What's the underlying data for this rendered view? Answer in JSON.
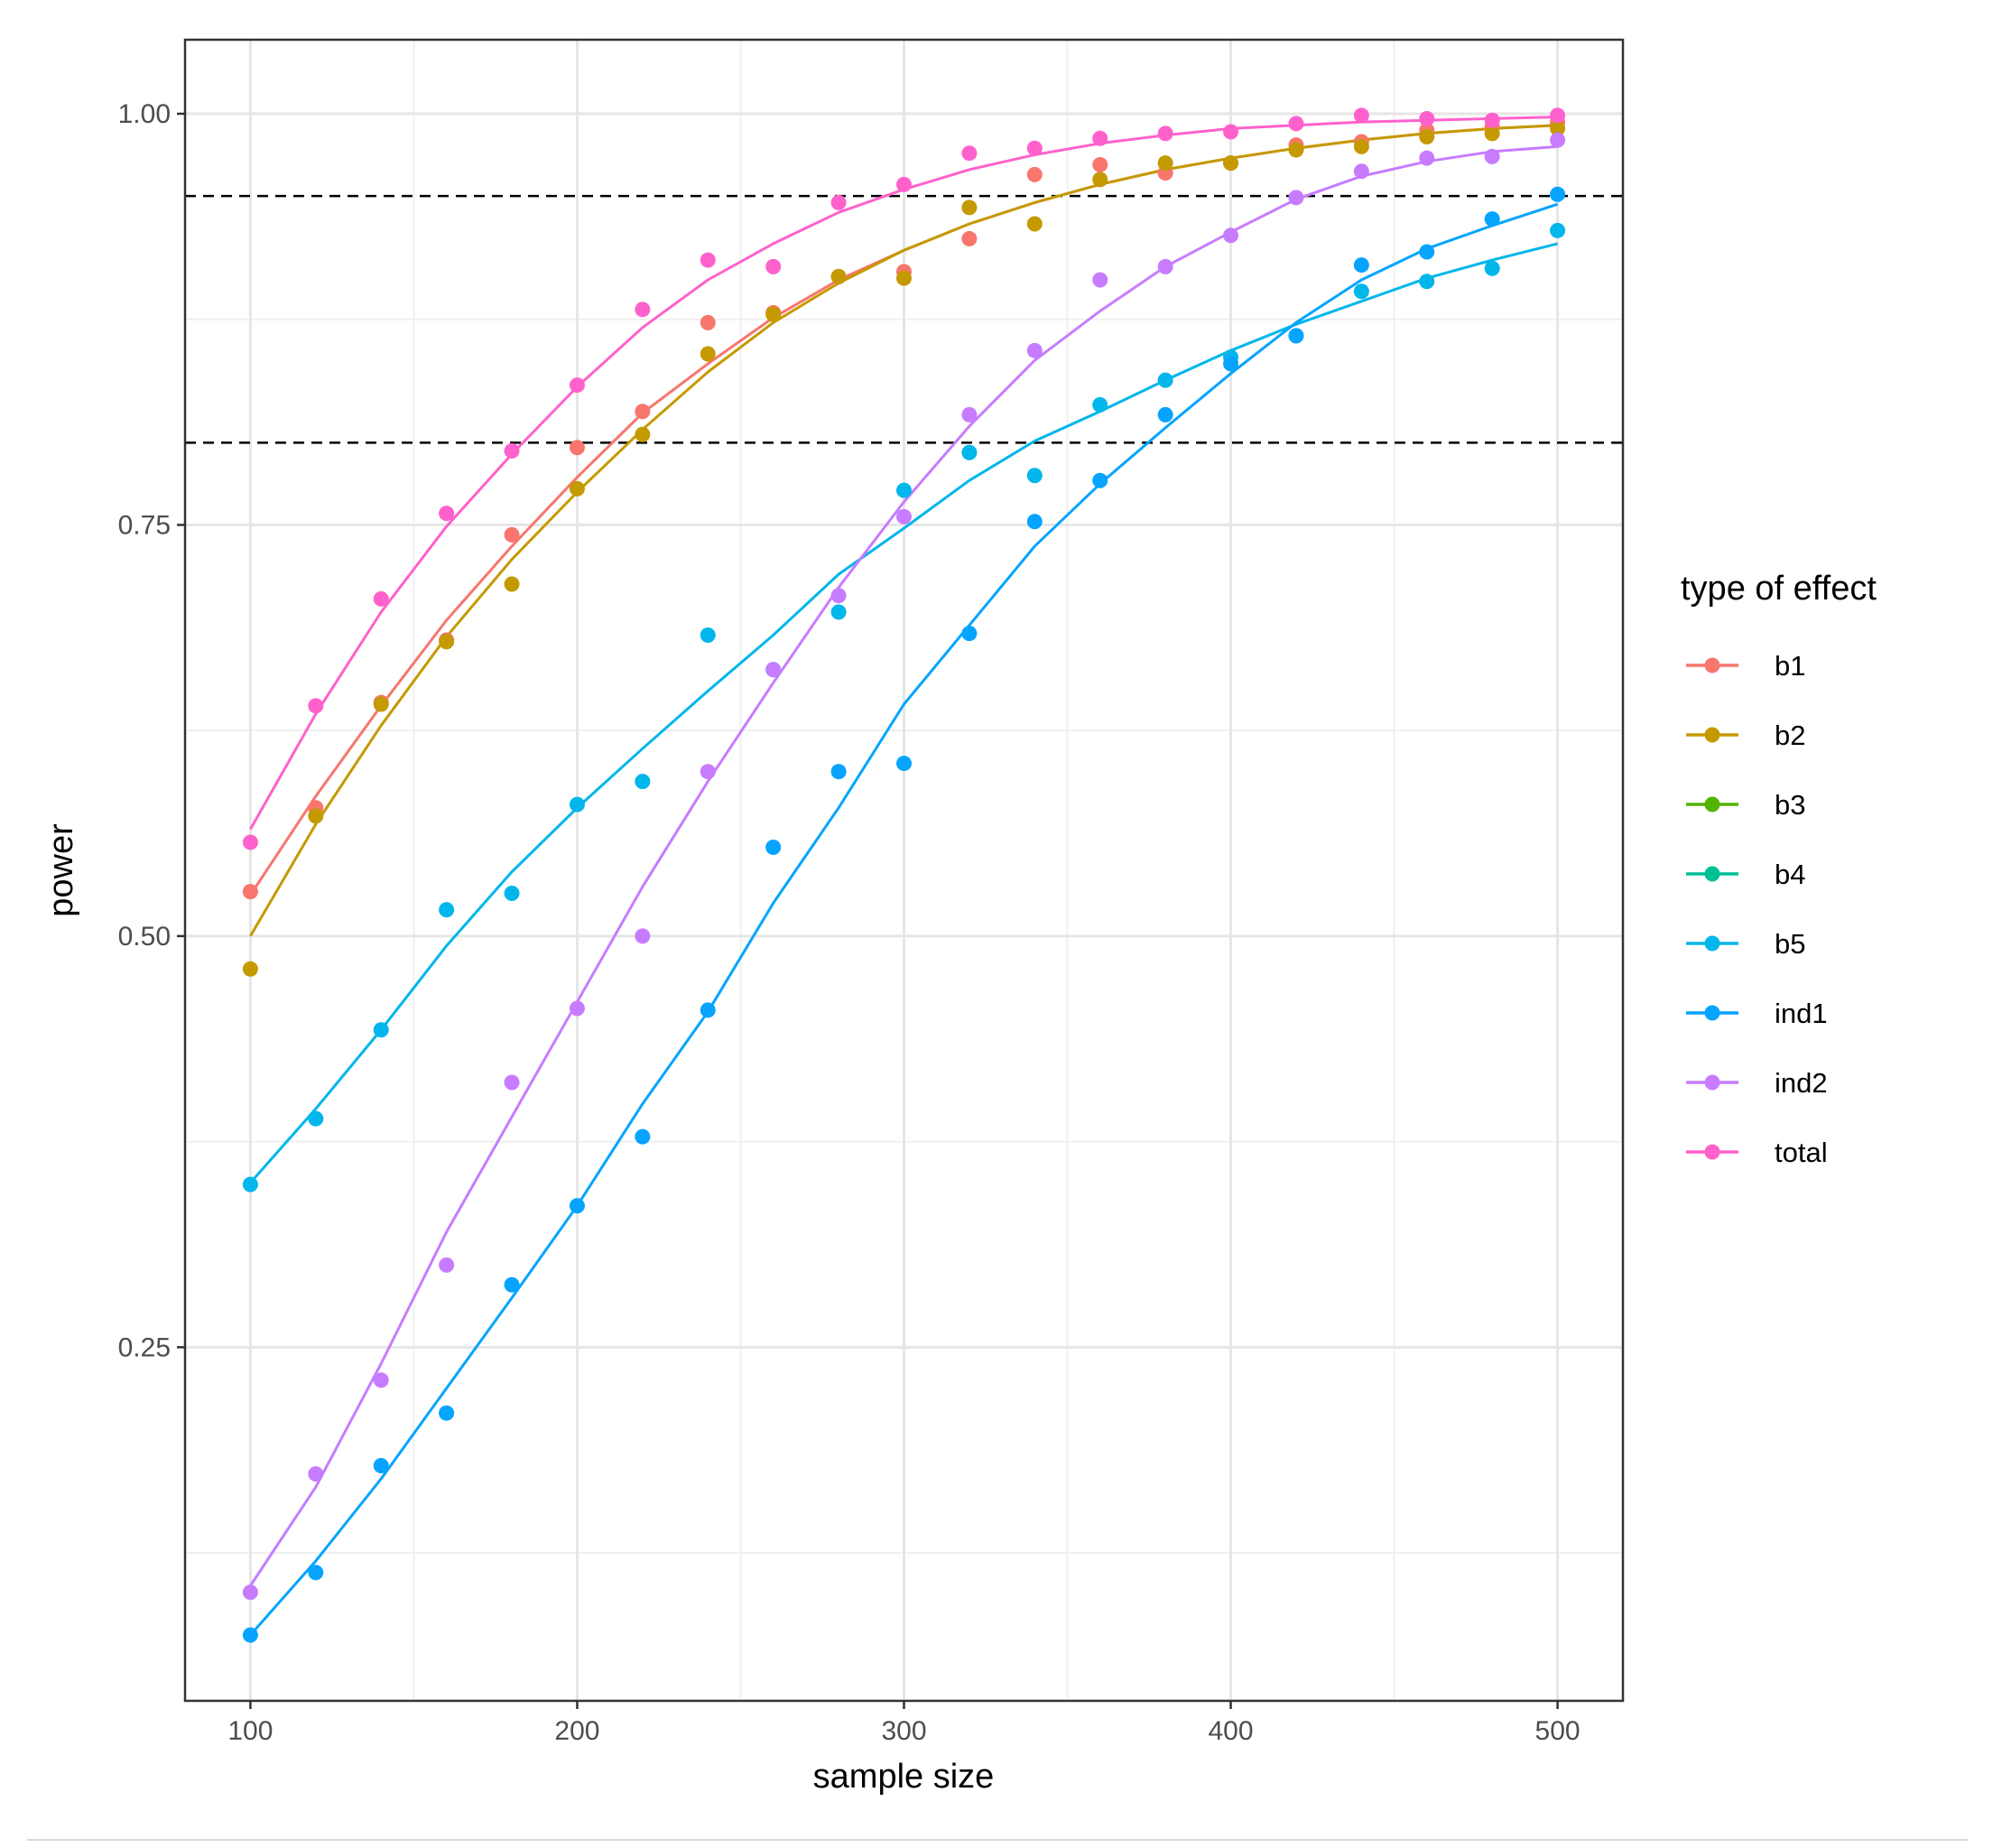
{
  "chart_data": {
    "type": "scatter",
    "xlabel": "sample size",
    "ylabel": "power",
    "xlim": [
      80,
      520
    ],
    "ylim": [
      0.035,
      1.045
    ],
    "x_ticks": [
      100,
      200,
      300,
      400,
      500
    ],
    "y_ticks": [
      0.25,
      0.5,
      0.75,
      1.0
    ],
    "x_tick_labels": [
      "100",
      "200",
      "300",
      "400",
      "500"
    ],
    "y_tick_labels": [
      "0.25",
      "0.50",
      "0.75",
      "1.00"
    ],
    "x_minor_ticks": [
      150,
      250,
      350,
      450
    ],
    "y_minor_ticks": [
      0.125,
      0.375,
      0.625,
      0.875
    ],
    "reference_lines": [
      0.8,
      0.95
    ],
    "grid": true,
    "legend_title": "type of effect",
    "legend_position": "right",
    "x": [
      100,
      120,
      140,
      160,
      180,
      200,
      220,
      240,
      260,
      280,
      300,
      320,
      340,
      360,
      380,
      400,
      420,
      440,
      460,
      480,
      500
    ],
    "series": [
      {
        "name": "b1",
        "color": "#F8766D",
        "points": [
          0.527,
          0.578,
          0.642,
          0.68,
          0.744,
          0.797,
          0.819,
          0.873,
          0.879,
          0.901,
          0.904,
          0.924,
          0.963,
          0.969,
          0.964,
          0.97,
          0.981,
          0.983,
          0.99,
          0.992,
          0.995
        ],
        "fit": [
          0.525,
          0.585,
          0.64,
          0.692,
          0.737,
          0.779,
          0.818,
          0.848,
          0.876,
          0.899,
          0.917,
          0.933,
          0.946,
          0.957,
          0.966,
          0.973,
          0.979,
          0.984,
          0.988,
          0.991,
          0.993
        ]
      },
      {
        "name": "b2",
        "color": "#C49A00",
        "points": [
          0.48,
          0.573,
          0.641,
          0.679,
          0.714,
          0.772,
          0.805,
          0.854,
          0.878,
          0.901,
          0.9,
          0.943,
          0.933,
          0.96,
          0.97,
          0.97,
          0.978,
          0.98,
          0.986,
          0.988,
          0.991
        ],
        "fit": [
          0.5,
          0.568,
          0.628,
          0.682,
          0.729,
          0.77,
          0.808,
          0.843,
          0.873,
          0.897,
          0.917,
          0.933,
          0.946,
          0.957,
          0.966,
          0.973,
          0.979,
          0.984,
          0.988,
          0.991,
          0.993
        ]
      },
      {
        "name": "b3",
        "color": "#53B400",
        "points": [],
        "fit": []
      },
      {
        "name": "b4",
        "color": "#00C094",
        "points": [],
        "fit": []
      },
      {
        "name": "b5",
        "color": "#00B6EB",
        "points": [
          0.349,
          0.389,
          0.443,
          0.516,
          0.526,
          0.58,
          0.594,
          0.683,
          0.662,
          0.697,
          0.771,
          0.794,
          0.78,
          0.823,
          0.838,
          0.852,
          0.865,
          0.892,
          0.898,
          0.906,
          0.929
        ],
        "fit": [
          0.35,
          0.395,
          0.443,
          0.494,
          0.539,
          0.578,
          0.614,
          0.649,
          0.683,
          0.72,
          0.748,
          0.777,
          0.801,
          0.819,
          0.838,
          0.856,
          0.872,
          0.886,
          0.9,
          0.911,
          0.921
        ]
      },
      {
        "name": "ind1",
        "color": "#06A4FF",
        "points": [
          0.075,
          0.113,
          0.178,
          0.21,
          0.288,
          0.336,
          0.378,
          0.455,
          0.554,
          0.6,
          0.605,
          0.684,
          0.752,
          0.777,
          0.817,
          0.848,
          0.865,
          0.908,
          0.916,
          0.936,
          0.951
        ],
        "fit": [
          0.075,
          0.12,
          0.17,
          0.225,
          0.28,
          0.336,
          0.398,
          0.454,
          0.52,
          0.578,
          0.641,
          0.689,
          0.737,
          0.775,
          0.809,
          0.842,
          0.873,
          0.899,
          0.918,
          0.932,
          0.945
        ]
      },
      {
        "name": "ind2",
        "color": "#C77CFF",
        "points": [
          0.101,
          0.173,
          0.23,
          0.3,
          0.411,
          0.456,
          0.5,
          0.6,
          0.662,
          0.707,
          0.755,
          0.817,
          0.856,
          0.899,
          0.907,
          0.926,
          0.949,
          0.965,
          0.973,
          0.974,
          0.984
        ],
        "fit": [
          0.105,
          0.165,
          0.24,
          0.32,
          0.39,
          0.46,
          0.53,
          0.594,
          0.654,
          0.712,
          0.764,
          0.81,
          0.85,
          0.88,
          0.907,
          0.928,
          0.948,
          0.962,
          0.971,
          0.977,
          0.98
        ]
      },
      {
        "name": "total",
        "color": "#FF61CC",
        "points": [
          0.557,
          0.64,
          0.705,
          0.757,
          0.795,
          0.835,
          0.881,
          0.911,
          0.907,
          0.946,
          0.957,
          0.976,
          0.979,
          0.985,
          0.988,
          0.989,
          0.994,
          0.999,
          0.997,
          0.996,
          0.999
        ],
        "fit": [
          0.565,
          0.635,
          0.697,
          0.749,
          0.793,
          0.834,
          0.87,
          0.899,
          0.921,
          0.94,
          0.954,
          0.966,
          0.975,
          0.982,
          0.987,
          0.991,
          0.993,
          0.995,
          0.996,
          0.997,
          0.998
        ]
      }
    ]
  }
}
